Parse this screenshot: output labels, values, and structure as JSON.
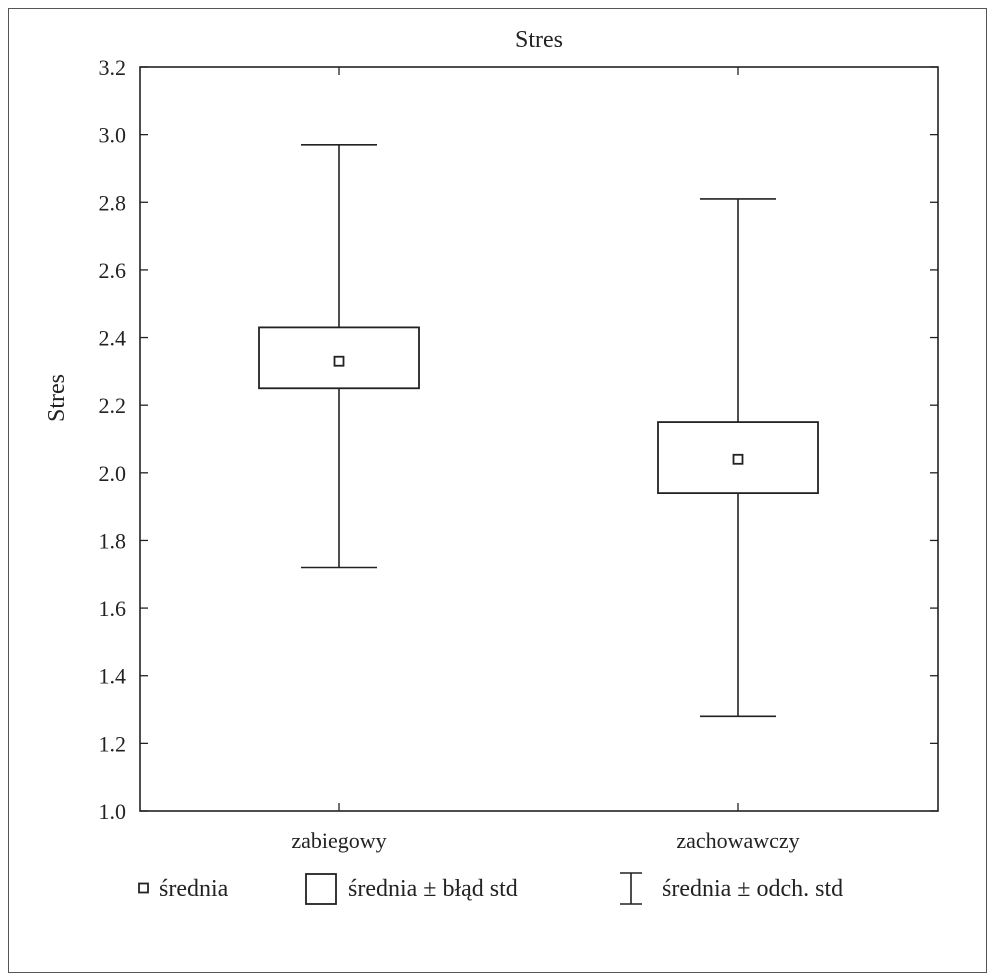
{
  "chart_data": {
    "type": "box",
    "title": "Stres",
    "ylabel": "Stres",
    "xlabel": "",
    "ylim": [
      1.0,
      3.2
    ],
    "yticks": [
      "1.0",
      "1.2",
      "1.4",
      "1.6",
      "1.8",
      "2.0",
      "2.2",
      "2.4",
      "2.6",
      "2.8",
      "3.0",
      "3.2"
    ],
    "categories": [
      "zabiegowy",
      "zachowawczy"
    ],
    "groups": [
      {
        "category": "zabiegowy",
        "mean": 2.33,
        "se_low": 2.25,
        "se_high": 2.43,
        "sd_low": 1.72,
        "sd_high": 2.97
      },
      {
        "category": "zachowawczy",
        "mean": 2.04,
        "se_low": 1.94,
        "se_high": 2.15,
        "sd_low": 1.28,
        "sd_high": 2.81
      }
    ],
    "legend": {
      "position": "bottom",
      "items": [
        {
          "symbol": "mean-marker",
          "label": "średnia"
        },
        {
          "symbol": "box",
          "label": "średnia ± błąd std"
        },
        {
          "symbol": "whisker",
          "label": "średnia ± odch. std"
        }
      ]
    },
    "grid": false
  }
}
